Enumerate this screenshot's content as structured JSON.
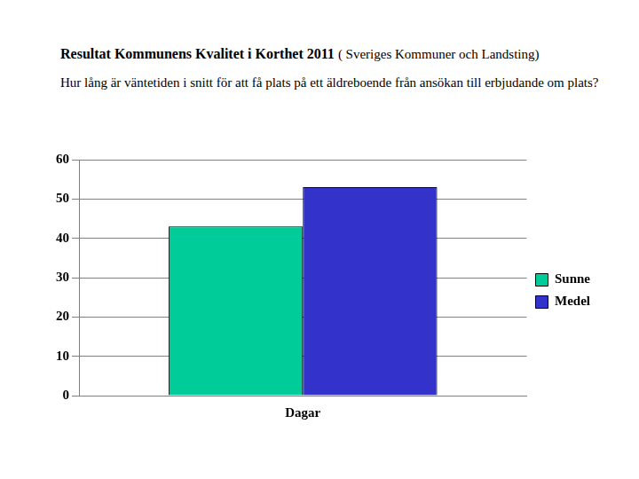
{
  "chart_data": {
    "type": "bar",
    "title": "Resultat Kommunens Kvalitet i Korthet 2011",
    "subtitle": "( Sveriges Kommuner och Landsting)",
    "annotations": [
      "Hur lång är väntetiden i snitt för att få plats på ett äldreboende från ansökan till erbjudande om plats?"
    ],
    "categories": [
      "Dagar"
    ],
    "series": [
      {
        "name": "Sunne",
        "color": "#00cc99",
        "values": [
          43
        ]
      },
      {
        "name": "Medel",
        "color": "#3333cc",
        "values": [
          53
        ]
      }
    ],
    "ylim": [
      0,
      60
    ],
    "yticks": [
      0,
      10,
      20,
      30,
      40,
      50,
      60
    ],
    "grid": true,
    "legend": "right"
  }
}
